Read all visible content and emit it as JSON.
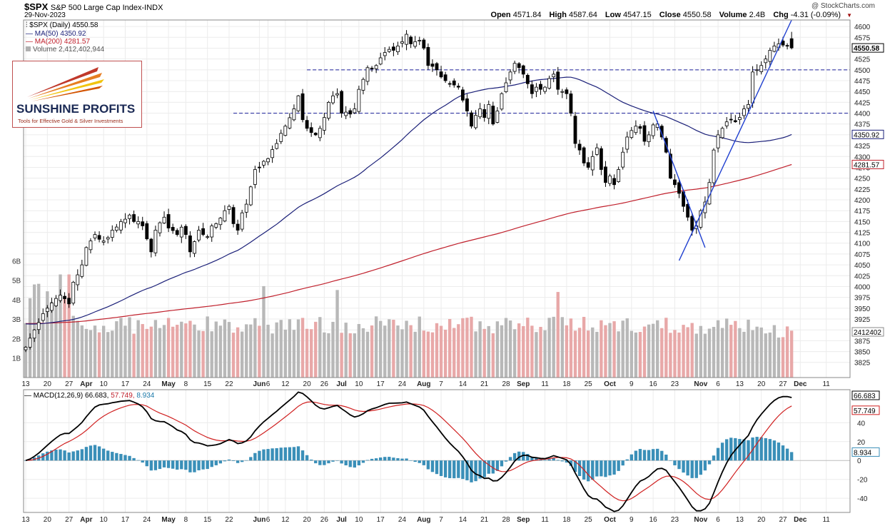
{
  "header": {
    "symbol": "$SPX",
    "name": "S&P 500 Large Cap Index",
    "exchange": "INDX",
    "date": "29-Nov-2023",
    "credit": "@ StockCharts.com",
    "ohlc": {
      "open_label": "Open",
      "open": "4571.84",
      "high_label": "High",
      "high": "4587.64",
      "low_label": "Low",
      "low": "4547.15",
      "close_label": "Close",
      "close": "4550.58",
      "volume_label": "Volume",
      "volume": "2.4B",
      "chg_label": "Chg",
      "chg": "-4.31 (-0.09%)"
    }
  },
  "legend": {
    "price": "$SPX (Daily) 4550.58",
    "ma50": "MA(50) 4350.92",
    "ma200": "MA(200) 4281.57",
    "volume": "Volume 2,412,402,944"
  },
  "logo": {
    "name": "SUNSHINE PROFITS",
    "tagline": "Tools for Effective Gold & Silver Investments"
  },
  "macd_legend": {
    "label": "MACD(12,26,9)",
    "macd": "66.683,",
    "signal": "57.749,",
    "hist": "8.934"
  },
  "chart_data": {
    "type": "candlestick",
    "colors": {
      "ma50": "#1a1f78",
      "ma200": "#c0202c",
      "volume_up": "#b8b8b8",
      "volume_down": "#e8a8a8",
      "macd": "#000000",
      "signal": "#d02020",
      "histogram": "#3a8fb8",
      "level_line": "#1a1f9a",
      "trend_line": "#2040d0"
    },
    "price_axis": {
      "ticks": [
        3825,
        3850,
        3875,
        3900,
        3925,
        3950,
        3975,
        4000,
        4025,
        4050,
        4075,
        4100,
        4125,
        4150,
        4175,
        4200,
        4225,
        4250,
        4275,
        4300,
        4325,
        4350,
        4375,
        4400,
        4425,
        4450,
        4475,
        4500,
        4525,
        4550,
        4575,
        4600
      ],
      "ylim": [
        3790,
        4615
      ],
      "last_price_label": "4550.58",
      "ma50_label": "4350.92",
      "ma200_label": "4281.57",
      "volume_label": "2412402"
    },
    "volume_axis": {
      "ticks": [
        "1B",
        "2B",
        "3B",
        "4B",
        "5B",
        "6B"
      ]
    },
    "macd_axis": {
      "ticks": [
        -40,
        -20,
        0,
        20,
        40
      ],
      "ylim": [
        -55,
        75
      ],
      "labels": [
        "66.683",
        "57.749",
        "8.934"
      ]
    },
    "x_axis": {
      "labels": [
        {
          "text": "13",
          "i": 0
        },
        {
          "text": "20",
          "i": 5
        },
        {
          "text": "27",
          "i": 10
        },
        {
          "text": "Apr",
          "i": 14,
          "bold": true
        },
        {
          "text": "10",
          "i": 18
        },
        {
          "text": "17",
          "i": 23
        },
        {
          "text": "24",
          "i": 28
        },
        {
          "text": "May",
          "i": 33,
          "bold": true
        },
        {
          "text": "8",
          "i": 37
        },
        {
          "text": "15",
          "i": 42
        },
        {
          "text": "22",
          "i": 47
        },
        {
          "text": "Jun",
          "i": 54,
          "bold": true
        },
        {
          "text": "6",
          "i": 56
        },
        {
          "text": "12",
          "i": 60
        },
        {
          "text": "20",
          "i": 65
        },
        {
          "text": "26",
          "i": 69
        },
        {
          "text": "Jul",
          "i": 73,
          "bold": true
        },
        {
          "text": "10",
          "i": 77
        },
        {
          "text": "17",
          "i": 82
        },
        {
          "text": "24",
          "i": 87
        },
        {
          "text": "Aug",
          "i": 92,
          "bold": true
        },
        {
          "text": "7",
          "i": 96
        },
        {
          "text": "14",
          "i": 101
        },
        {
          "text": "21",
          "i": 106
        },
        {
          "text": "28",
          "i": 111
        },
        {
          "text": "Sep",
          "i": 115,
          "bold": true
        },
        {
          "text": "11",
          "i": 120
        },
        {
          "text": "18",
          "i": 125
        },
        {
          "text": "25",
          "i": 130
        },
        {
          "text": "Oct",
          "i": 135,
          "bold": true
        },
        {
          "text": "9",
          "i": 140
        },
        {
          "text": "16",
          "i": 145
        },
        {
          "text": "23",
          "i": 150
        },
        {
          "text": "Nov",
          "i": 156,
          "bold": true
        },
        {
          "text": "6",
          "i": 160
        },
        {
          "text": "13",
          "i": 165
        },
        {
          "text": "20",
          "i": 170
        },
        {
          "text": "27",
          "i": 175
        },
        {
          "text": "Dec",
          "i": 179,
          "bold": true
        },
        {
          "text": "11",
          "i": 185
        }
      ]
    },
    "anchors": [
      [
        0,
        3860
      ],
      [
        2,
        3900
      ],
      [
        5,
        3950
      ],
      [
        8,
        3980
      ],
      [
        10,
        3960
      ],
      [
        11,
        4010
      ],
      [
        12,
        4027
      ],
      [
        13,
        4050
      ],
      [
        14,
        4090
      ],
      [
        16,
        4120
      ],
      [
        18,
        4105
      ],
      [
        20,
        4130
      ],
      [
        22,
        4150
      ],
      [
        24,
        4165
      ],
      [
        25,
        4150
      ],
      [
        27,
        4140
      ],
      [
        28,
        4110
      ],
      [
        29,
        4080
      ],
      [
        30,
        4130
      ],
      [
        32,
        4160
      ],
      [
        33,
        4135
      ],
      [
        35,
        4120
      ],
      [
        36,
        4137
      ],
      [
        37,
        4120
      ],
      [
        38,
        4080
      ],
      [
        40,
        4130
      ],
      [
        42,
        4115
      ],
      [
        43,
        4140
      ],
      [
        45,
        4158
      ],
      [
        46,
        4175
      ],
      [
        47,
        4185
      ],
      [
        48,
        4145
      ],
      [
        49,
        4130
      ],
      [
        50,
        4170
      ],
      [
        51,
        4190
      ],
      [
        52,
        4230
      ],
      [
        53,
        4270
      ],
      [
        54,
        4275
      ],
      [
        56,
        4295
      ],
      [
        58,
        4330
      ],
      [
        60,
        4370
      ],
      [
        62,
        4410
      ],
      [
        63,
        4440
      ],
      [
        64,
        4385
      ],
      [
        65,
        4365
      ],
      [
        67,
        4350
      ],
      [
        68,
        4365
      ],
      [
        69,
        4390
      ],
      [
        70,
        4425
      ],
      [
        71,
        4440
      ],
      [
        72,
        4445
      ],
      [
        73,
        4400
      ],
      [
        75,
        4398
      ],
      [
        76,
        4410
      ],
      [
        77,
        4455
      ],
      [
        78,
        4478
      ],
      [
        79,
        4505
      ],
      [
        81,
        4510
      ],
      [
        83,
        4540
      ],
      [
        85,
        4545
      ],
      [
        86,
        4555
      ],
      [
        87,
        4565
      ],
      [
        88,
        4582
      ],
      [
        89,
        4560
      ],
      [
        90,
        4565
      ],
      [
        91,
        4568
      ],
      [
        92,
        4550
      ],
      [
        93,
        4510
      ],
      [
        95,
        4500
      ],
      [
        97,
        4475
      ],
      [
        99,
        4465
      ],
      [
        100,
        4460
      ],
      [
        101,
        4430
      ],
      [
        102,
        4405
      ],
      [
        103,
        4370
      ],
      [
        104,
        4395
      ],
      [
        105,
        4410
      ],
      [
        106,
        4390
      ],
      [
        107,
        4420
      ],
      [
        108,
        4375
      ],
      [
        109,
        4405
      ],
      [
        110,
        4445
      ],
      [
        111,
        4470
      ],
      [
        112,
        4495
      ],
      [
        113,
        4515
      ],
      [
        114,
        4505
      ],
      [
        115,
        4490
      ],
      [
        116,
        4468
      ],
      [
        117,
        4445
      ],
      [
        118,
        4460
      ],
      [
        119,
        4455
      ],
      [
        120,
        4460
      ],
      [
        121,
        4480
      ],
      [
        122,
        4490
      ],
      [
        123,
        4455
      ],
      [
        124,
        4450
      ],
      [
        125,
        4445
      ],
      [
        126,
        4400
      ],
      [
        127,
        4330
      ],
      [
        128,
        4315
      ],
      [
        129,
        4285
      ],
      [
        130,
        4275
      ],
      [
        131,
        4300
      ],
      [
        132,
        4320
      ],
      [
        133,
        4270
      ],
      [
        134,
        4240
      ],
      [
        135,
        4255
      ],
      [
        136,
        4235
      ],
      [
        137,
        4270
      ],
      [
        138,
        4310
      ],
      [
        139,
        4345
      ],
      [
        140,
        4360
      ],
      [
        141,
        4370
      ],
      [
        142,
        4365
      ],
      [
        143,
        4335
      ],
      [
        144,
        4350
      ],
      [
        145,
        4373
      ],
      [
        146,
        4375
      ],
      [
        147,
        4345
      ],
      [
        148,
        4310
      ],
      [
        149,
        4250
      ],
      [
        150,
        4235
      ],
      [
        151,
        4215
      ],
      [
        152,
        4185
      ],
      [
        153,
        4160
      ],
      [
        154,
        4130
      ],
      [
        155,
        4140
      ],
      [
        156,
        4175
      ],
      [
        157,
        4195
      ],
      [
        158,
        4240
      ],
      [
        159,
        4315
      ],
      [
        160,
        4350
      ],
      [
        161,
        4365
      ],
      [
        162,
        4380
      ],
      [
        163,
        4385
      ],
      [
        164,
        4380
      ],
      [
        165,
        4390
      ],
      [
        166,
        4410
      ],
      [
        167,
        4420
      ],
      [
        168,
        4495
      ],
      [
        169,
        4500
      ],
      [
        170,
        4510
      ],
      [
        171,
        4525
      ],
      [
        172,
        4545
      ],
      [
        173,
        4555
      ],
      [
        174,
        4560
      ],
      [
        175,
        4557
      ],
      [
        176,
        4555
      ],
      [
        177,
        4550.58
      ]
    ],
    "levels": [
      {
        "value": 4500,
        "from_i": 65,
        "to_i": 190
      },
      {
        "value": 4400,
        "from_i": 48,
        "to_i": 190
      }
    ],
    "trendlines": [
      {
        "points": [
          [
            145,
            4405
          ],
          [
            157,
            4090
          ]
        ]
      },
      {
        "points": [
          [
            151,
            4060
          ],
          [
            177,
            4615
          ]
        ]
      }
    ],
    "last_index": 177,
    "total_slots": 191
  }
}
